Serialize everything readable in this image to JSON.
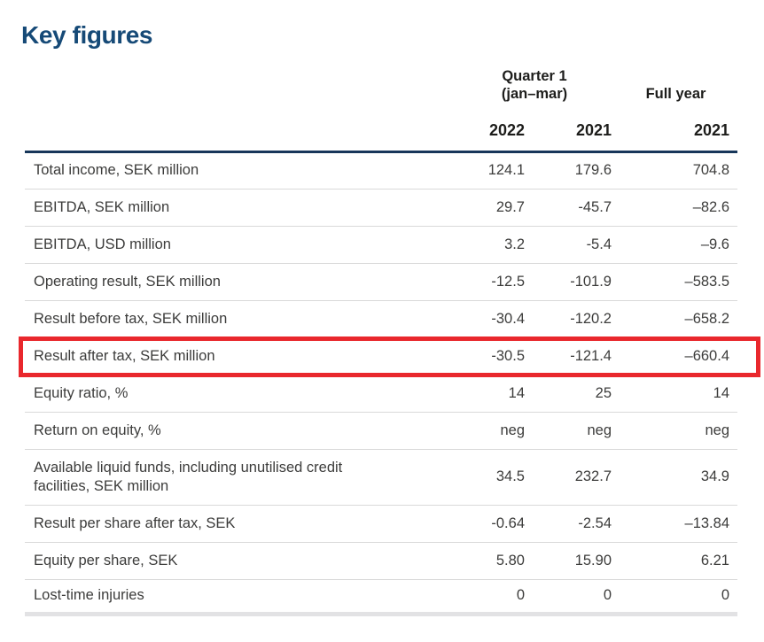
{
  "title": "Key figures",
  "colors": {
    "title_navy": "#164a77",
    "header_rule_navy": "#17365a",
    "row_separator_gray": "#d9d9d9",
    "bottom_bar_gray": "#e2e2e4",
    "body_text": "#3c3c3b",
    "header_text": "#1d1d1b",
    "highlight_red": "#e9282d"
  },
  "table": {
    "group_headers": {
      "quarter_line1": "Quarter 1",
      "quarter_line2": "(jan–mar)",
      "full_year": "Full year"
    },
    "year_headers": [
      "2022",
      "2021",
      "2021"
    ],
    "highlighted_row_label": "Result after tax, SEK million",
    "rows": [
      {
        "label": "Total income, SEK million",
        "values": [
          "124.1",
          "179.6",
          "704.8"
        ]
      },
      {
        "label": "EBITDA, SEK million",
        "values": [
          "29.7",
          "-45.7",
          "–82.6"
        ]
      },
      {
        "label": "EBITDA, USD million",
        "values": [
          "3.2",
          "-5.4",
          "–9.6"
        ]
      },
      {
        "label": "Operating result, SEK million",
        "values": [
          "-12.5",
          "-101.9",
          "–583.5"
        ]
      },
      {
        "label": "Result before tax, SEK million",
        "values": [
          "-30.4",
          "-120.2",
          "–658.2"
        ]
      },
      {
        "label": "Result after tax, SEK million",
        "values": [
          "-30.5",
          "-121.4",
          "–660.4"
        ]
      },
      {
        "label": "Equity ratio, %",
        "values": [
          "14",
          "25",
          "14"
        ]
      },
      {
        "label": "Return on equity, %",
        "values": [
          "neg",
          "neg",
          "neg"
        ]
      },
      {
        "label": "Available liquid funds, including unutilised credit facilities, SEK million",
        "values": [
          "34.5",
          "232.7",
          "34.9"
        ]
      },
      {
        "label": "Result per share after tax, SEK",
        "values": [
          "-0.64",
          "-2.54",
          "–13.84"
        ]
      },
      {
        "label": "Equity per share, SEK",
        "values": [
          "5.80",
          "15.90",
          "6.21"
        ]
      },
      {
        "label": "Lost-time injuries",
        "values": [
          "0",
          "0",
          "0"
        ]
      }
    ]
  }
}
